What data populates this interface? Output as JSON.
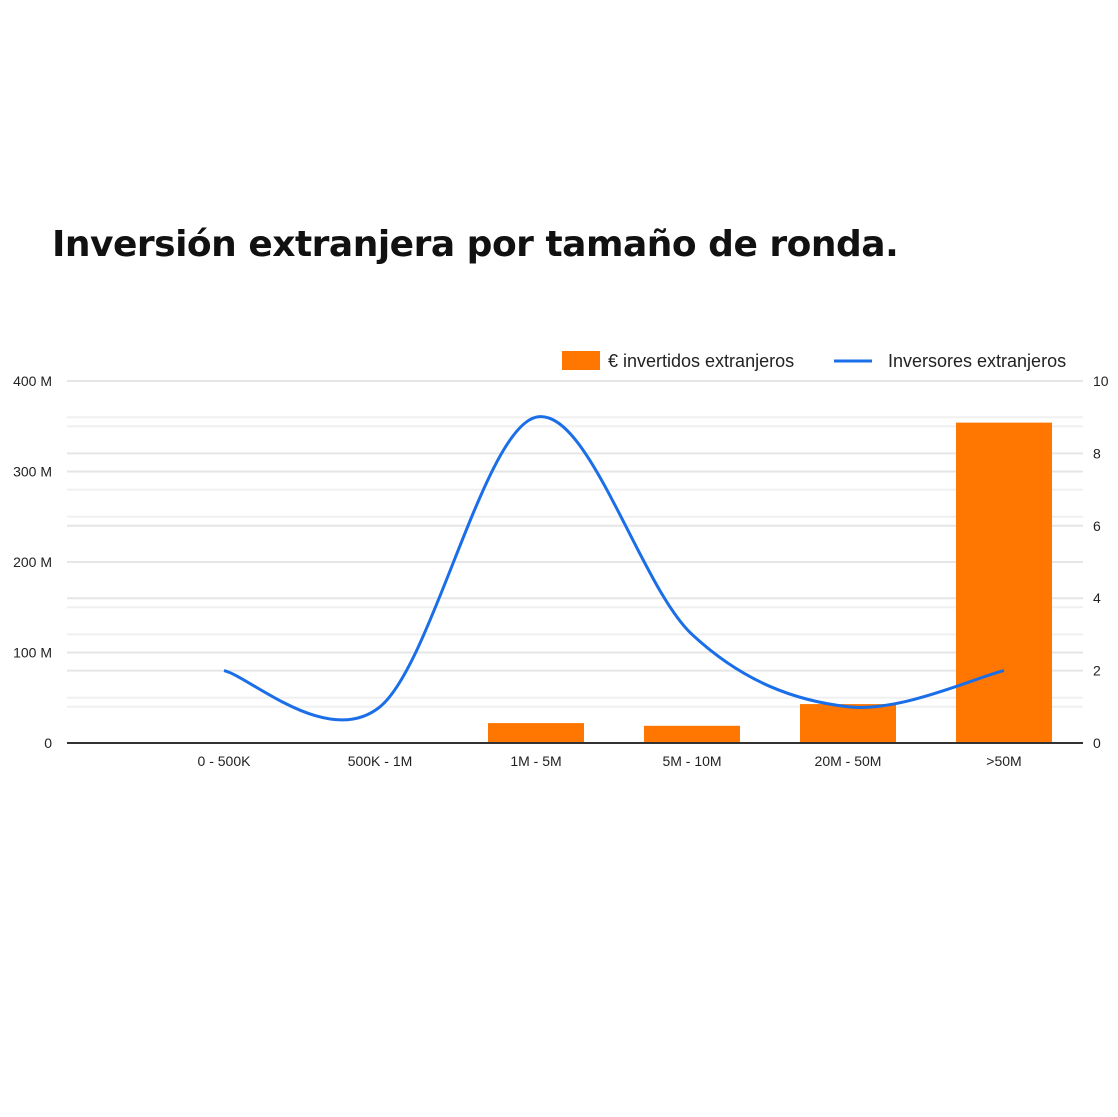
{
  "chart_data": {
    "type": "bar+line",
    "title": "Inversión extranjera por tamaño de ronda.",
    "categories": [
      "0 - 500K",
      "500K - 1M",
      "1M - 5M",
      "5M - 10M",
      "20M - 50M",
      ">50M"
    ],
    "series": [
      {
        "name": "€ invertidos extranjeros",
        "type": "bar",
        "axis": "left",
        "color": "#ff7700",
        "values": [
          0.5,
          0.5,
          22,
          19,
          43,
          354
        ]
      },
      {
        "name": "Inversores extranjeros",
        "type": "line",
        "axis": "right",
        "color": "#1a6ee8",
        "smooth": true,
        "values": [
          2,
          1,
          9,
          3,
          1,
          2
        ]
      }
    ],
    "left_axis": {
      "ylim": [
        0,
        400
      ],
      "ticks": [
        0,
        100,
        200,
        300,
        400
      ],
      "tick_labels": [
        "0",
        "100 M",
        "200 M",
        "300 M",
        "400 M"
      ]
    },
    "right_axis": {
      "ylim": [
        0,
        10
      ],
      "ticks": [
        0,
        2,
        4,
        6,
        8,
        10
      ],
      "tick_labels": [
        "0",
        "2",
        "4",
        "6",
        "8",
        "10"
      ]
    },
    "grid": true,
    "legend_position": "top-right"
  }
}
